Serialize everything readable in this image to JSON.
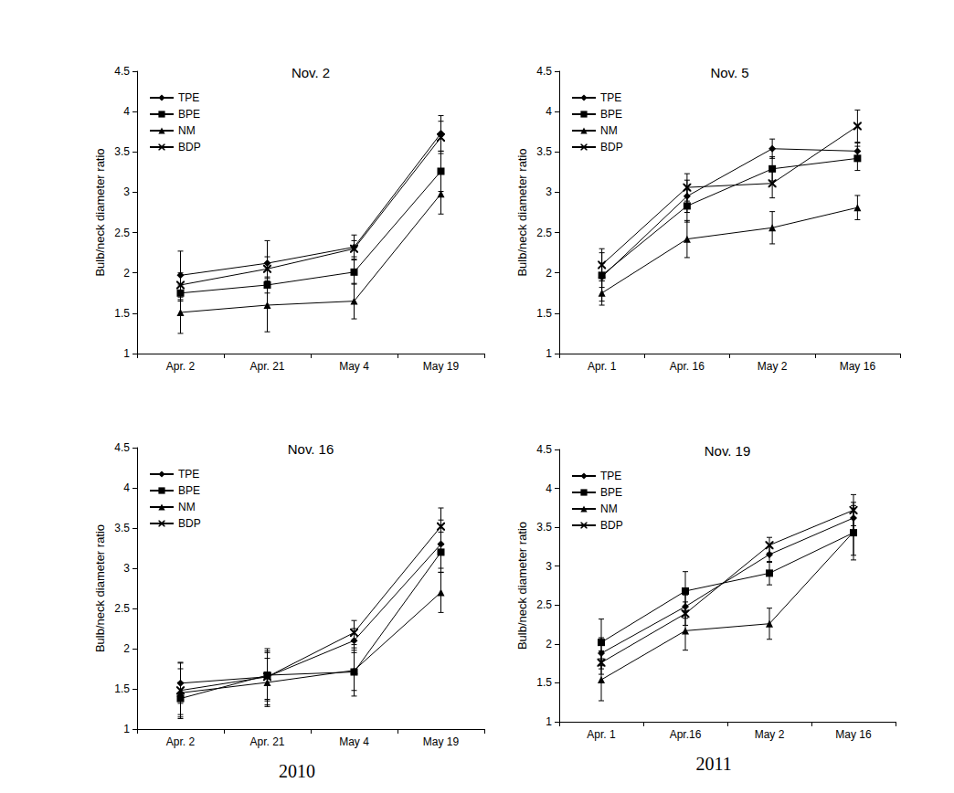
{
  "chart_data": [
    {
      "type": "line",
      "title": "Nov. 2",
      "ylabel": "Bulb/neck diameter ratio",
      "categories": [
        "Apr. 2",
        "Apr. 21",
        "May 4",
        "May 19"
      ],
      "ylim": [
        1,
        4.5
      ],
      "yticks": [
        1,
        1.5,
        2,
        2.5,
        3,
        3.5,
        4,
        4.5
      ],
      "grid": false,
      "legend": "upper left",
      "series": [
        {
          "name": "TPE",
          "color": "#000000",
          "marker": "diamond",
          "values": [
            1.97,
            2.12,
            2.32,
            3.73
          ],
          "errors": [
            0.3,
            0.28,
            0.15,
            0.22
          ]
        },
        {
          "name": "BPE",
          "color": "#000000",
          "marker": "square",
          "values": [
            1.75,
            1.85,
            2.01,
            3.26
          ],
          "errors": [
            0.1,
            0.1,
            0.15,
            0.25
          ]
        },
        {
          "name": "NM",
          "color": "#000000",
          "marker": "triangle",
          "values": [
            1.51,
            1.6,
            1.65,
            2.98
          ],
          "errors": [
            0.26,
            0.33,
            0.22,
            0.25
          ]
        },
        {
          "name": "BDP",
          "color": "#000000",
          "marker": "x",
          "values": [
            1.85,
            2.05,
            2.3,
            3.68
          ],
          "errors": [
            0.15,
            0.15,
            0.1,
            0.2
          ]
        }
      ]
    },
    {
      "type": "line",
      "title": "Nov. 5",
      "ylabel": "Bulb/neck diameter ratio",
      "categories": [
        "Apr. 1",
        "Apr. 16",
        "May 2",
        "May 16"
      ],
      "ylim": [
        1,
        4.5
      ],
      "yticks": [
        1,
        1.5,
        2,
        2.5,
        3,
        3.5,
        4,
        4.5
      ],
      "grid": false,
      "legend": "upper left",
      "series": [
        {
          "name": "TPE",
          "color": "#000000",
          "marker": "diamond",
          "values": [
            1.95,
            2.95,
            3.54,
            3.51
          ],
          "errors": [
            0.3,
            0.2,
            0.12,
            0.1
          ]
        },
        {
          "name": "BPE",
          "color": "#000000",
          "marker": "square",
          "values": [
            1.97,
            2.83,
            3.29,
            3.42
          ],
          "errors": [
            0.15,
            0.2,
            0.15,
            0.15
          ]
        },
        {
          "name": "NM",
          "color": "#000000",
          "marker": "triangle",
          "values": [
            1.75,
            2.42,
            2.56,
            2.81
          ],
          "errors": [
            0.15,
            0.23,
            0.2,
            0.15
          ]
        },
        {
          "name": "BDP",
          "color": "#000000",
          "marker": "x",
          "values": [
            2.1,
            3.06,
            3.11,
            3.82
          ],
          "errors": [
            0.2,
            0.17,
            0.18,
            0.2
          ]
        }
      ]
    },
    {
      "type": "line",
      "title": "Nov. 16",
      "ylabel": "Bulb/neck diameter ratio",
      "annotation": "2010",
      "categories": [
        "Apr. 2",
        "Apr. 21",
        "May 4",
        "May 19"
      ],
      "ylim": [
        1,
        4.5
      ],
      "yticks": [
        1,
        1.5,
        2,
        2.5,
        3,
        3.5,
        4,
        4.5
      ],
      "grid": false,
      "legend": "upper left",
      "series": [
        {
          "name": "TPE",
          "color": "#000000",
          "marker": "diamond",
          "values": [
            1.57,
            1.65,
            2.1,
            3.3
          ],
          "errors": [
            0.25,
            0.3,
            0.15,
            0.3
          ]
        },
        {
          "name": "BPE",
          "color": "#000000",
          "marker": "square",
          "values": [
            1.38,
            1.67,
            1.71,
            3.2
          ],
          "errors": [
            0.2,
            0.3,
            0.3,
            0.25
          ]
        },
        {
          "name": "NM",
          "color": "#000000",
          "marker": "triangle",
          "values": [
            1.45,
            1.58,
            1.73,
            2.7
          ],
          "errors": [
            0.3,
            0.3,
            0.25,
            0.25
          ]
        },
        {
          "name": "BDP",
          "color": "#000000",
          "marker": "x",
          "values": [
            1.48,
            1.65,
            2.2,
            3.52
          ],
          "errors": [
            0.35,
            0.35,
            0.15,
            0.23
          ]
        }
      ]
    },
    {
      "type": "line",
      "title": "Nov. 19",
      "ylabel": "Bulb/neck diameter ratio",
      "annotation": "2011",
      "categories": [
        "Apr. 1",
        "Apr.16",
        "May 2",
        "May 16"
      ],
      "ylim": [
        1,
        4.5
      ],
      "yticks": [
        1,
        1.5,
        2,
        2.5,
        3,
        3.5,
        4,
        4.5
      ],
      "grid": false,
      "legend": "upper left",
      "series": [
        {
          "name": "TPE",
          "color": "#000000",
          "marker": "diamond",
          "values": [
            1.88,
            2.48,
            3.15,
            3.62
          ],
          "errors": [
            0.2,
            0.15,
            0.1,
            0.2
          ]
        },
        {
          "name": "BPE",
          "color": "#000000",
          "marker": "square",
          "values": [
            2.02,
            2.68,
            2.91,
            3.43
          ],
          "errors": [
            0.3,
            0.25,
            0.15,
            0.35
          ]
        },
        {
          "name": "NM",
          "color": "#000000",
          "marker": "triangle",
          "values": [
            1.54,
            2.17,
            2.26,
            3.44
          ],
          "errors": [
            0.27,
            0.25,
            0.2,
            0.3
          ]
        },
        {
          "name": "BDP",
          "color": "#000000",
          "marker": "x",
          "values": [
            1.76,
            2.39,
            3.27,
            3.72
          ],
          "errors": [
            0.15,
            0.15,
            0.1,
            0.2
          ]
        }
      ]
    }
  ]
}
